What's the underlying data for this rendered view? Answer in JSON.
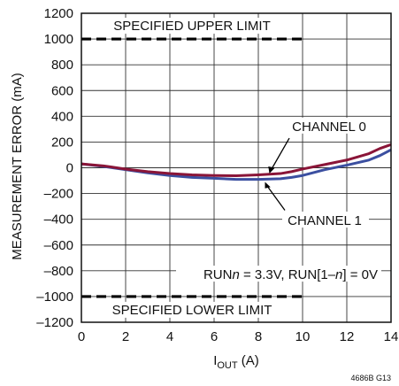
{
  "chart_data": {
    "type": "line",
    "xlabel_main": "I",
    "xlabel_sub": "OUT",
    "xlabel_unit": " (A)",
    "ylabel": "MEASUREMENT ERROR (mA)",
    "xlim": [
      0,
      14
    ],
    "ylim": [
      -1200,
      1200
    ],
    "x_ticks": [
      "0",
      "2",
      "4",
      "6",
      "8",
      "10",
      "12",
      "14"
    ],
    "y_ticks": [
      "1200",
      "1000",
      "800",
      "600",
      "400",
      "200",
      "0",
      "–200",
      "–400",
      "–600",
      "–800",
      "–1000",
      "–1200"
    ],
    "grid": true,
    "limits": [
      {
        "label": "SPECIFIED UPPER LIMIT",
        "value": 1000,
        "x_range": [
          0,
          10
        ]
      },
      {
        "label": "SPECIFIED LOWER LIMIT",
        "value": -1000,
        "x_range": [
          0,
          10
        ]
      }
    ],
    "series": [
      {
        "name": "CHANNEL 0",
        "color": "#8a1538",
        "x": [
          0,
          1,
          2,
          3,
          4,
          5,
          6,
          7,
          8,
          9,
          9.5,
          10,
          11,
          12,
          13,
          13.5,
          14
        ],
        "y": [
          30,
          15,
          -10,
          -30,
          -45,
          -55,
          -60,
          -62,
          -55,
          -45,
          -30,
          -10,
          25,
          60,
          110,
          150,
          180
        ]
      },
      {
        "name": "CHANNEL 1",
        "color": "#3b4fa0",
        "x": [
          0,
          1,
          2,
          3,
          4,
          5,
          6,
          7,
          8,
          9,
          9.5,
          10,
          11,
          12,
          13,
          13.5,
          14
        ],
        "y": [
          30,
          10,
          -15,
          -40,
          -60,
          -75,
          -82,
          -90,
          -90,
          -85,
          -75,
          -60,
          -15,
          20,
          60,
          95,
          140
        ]
      }
    ],
    "annotations": [
      {
        "text": "CHANNEL 0",
        "x": 11.2,
        "y": 300
      },
      {
        "text": "CHANNEL 1",
        "x": 11.0,
        "y": -430
      },
      {
        "text_parts": [
          "RUN",
          "n",
          " = 3.3V, RUN[1–",
          "n",
          "] = 0V"
        ],
        "x": 9.0,
        "y": -850
      }
    ],
    "figure_code": "4686B G13"
  }
}
